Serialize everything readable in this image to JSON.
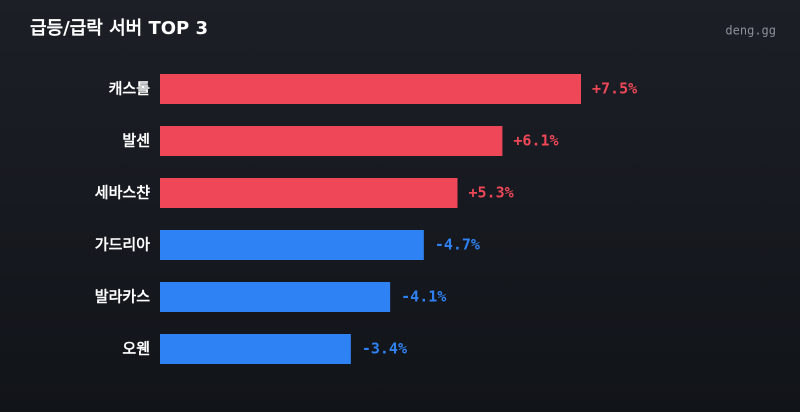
{
  "chart_data": {
    "type": "bar",
    "orientation": "horizontal",
    "title": "급등/급락 서버 TOP 3",
    "watermark": "deng.gg",
    "categories": [
      "캐스톨",
      "발센",
      "세바스챤",
      "가드리아",
      "발라카스",
      "오웬"
    ],
    "values": [
      7.5,
      6.1,
      5.3,
      -4.7,
      -4.1,
      -3.4
    ],
    "value_labels": [
      "+7.5%",
      "+6.1%",
      "+5.3%",
      "-4.7%",
      "-4.1%",
      "-3.4%"
    ],
    "positive_color": "#ef4758",
    "negative_color": "#2f82f4"
  }
}
